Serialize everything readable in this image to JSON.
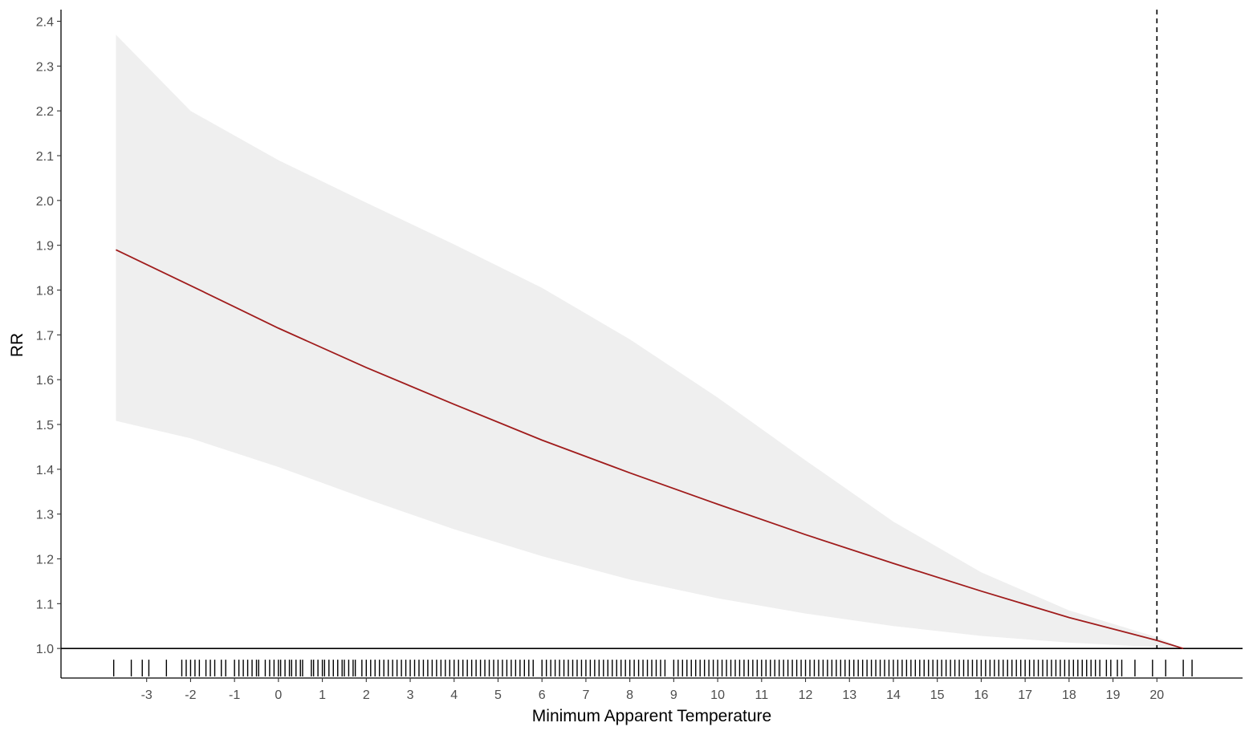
{
  "chart_data": {
    "type": "line",
    "xlabel": "Minimum Apparent Temperature",
    "ylabel": "RR",
    "xlim": [
      -4.95,
      21.95
    ],
    "ylim": [
      0.934,
      2.426
    ],
    "x_ticks": [
      -3,
      -2,
      -1,
      0,
      1,
      2,
      3,
      4,
      5,
      6,
      7,
      8,
      9,
      10,
      11,
      12,
      13,
      14,
      15,
      16,
      17,
      18,
      19,
      20
    ],
    "x_tick_labels": [
      "-3",
      "-2",
      "-1",
      "0",
      "1",
      "2",
      "3",
      "4",
      "5",
      "6",
      "7",
      "8",
      "9",
      "10",
      "11",
      "12",
      "13",
      "14",
      "15",
      "16",
      "17",
      "18",
      "19",
      "20"
    ],
    "y_ticks": [
      1.0,
      1.1,
      1.2,
      1.3,
      1.4,
      1.5,
      1.6,
      1.7,
      1.8,
      1.9,
      2.0,
      2.1,
      2.2,
      2.3,
      2.4
    ],
    "y_tick_labels": [
      "1.0",
      "1.1",
      "1.2",
      "1.3",
      "1.4",
      "1.5",
      "1.6",
      "1.7",
      "1.8",
      "1.9",
      "2.0",
      "2.1",
      "2.2",
      "2.3",
      "2.4"
    ],
    "reference_line_y": 1.0,
    "reference_temperature": 20,
    "series": [
      {
        "x": [
          -3.7,
          -2,
          0,
          2,
          4,
          6,
          8,
          10,
          12,
          14,
          16,
          18,
          20,
          20.6
        ],
        "values": [
          1.89,
          1.81,
          1.715,
          1.627,
          1.545,
          1.465,
          1.392,
          1.322,
          1.254,
          1.19,
          1.128,
          1.069,
          1.018,
          1.0
        ],
        "lower": [
          1.508,
          1.469,
          1.405,
          1.334,
          1.266,
          1.206,
          1.154,
          1.112,
          1.078,
          1.05,
          1.028,
          1.013,
          1.003,
          1.0
        ],
        "upper": [
          2.37,
          2.2,
          2.09,
          1.995,
          1.902,
          1.805,
          1.69,
          1.56,
          1.42,
          1.283,
          1.17,
          1.085,
          1.025,
          1.0
        ],
        "color": "#a01c1c",
        "band_color": "#efefef"
      }
    ],
    "rug_x": [
      -3.75,
      -3.35,
      -3.1,
      -2.95,
      -2.55,
      -2.2,
      -2.1,
      -2.0,
      -1.9,
      -1.8,
      -1.65,
      -1.55,
      -1.45,
      -1.3,
      -1.2,
      -1.0,
      -0.9,
      -0.8,
      -0.7,
      -0.6,
      -0.5,
      -0.45,
      -0.3,
      -0.2,
      -0.1,
      0.0,
      0.05,
      0.15,
      0.25,
      0.3,
      0.4,
      0.5,
      0.55,
      0.75,
      0.8,
      0.9,
      1.0,
      1.05,
      1.15,
      1.25,
      1.35,
      1.45,
      1.5,
      1.6,
      1.7,
      1.75,
      1.9,
      2.0,
      2.1,
      2.2,
      2.3,
      2.4,
      2.5,
      2.6,
      2.7,
      2.8,
      2.9,
      3.0,
      3.1,
      3.2,
      3.3,
      3.4,
      3.5,
      3.6,
      3.7,
      3.8,
      3.9,
      4.0,
      4.1,
      4.2,
      4.3,
      4.4,
      4.5,
      4.6,
      4.7,
      4.8,
      4.9,
      5.0,
      5.1,
      5.2,
      5.3,
      5.4,
      5.5,
      5.6,
      5.7,
      5.8,
      6.0,
      6.1,
      6.2,
      6.3,
      6.4,
      6.5,
      6.6,
      6.7,
      6.8,
      6.9,
      7.0,
      7.1,
      7.2,
      7.3,
      7.4,
      7.5,
      7.6,
      7.7,
      7.8,
      7.9,
      8.0,
      8.1,
      8.2,
      8.3,
      8.4,
      8.5,
      8.6,
      8.7,
      8.8,
      9.0,
      9.1,
      9.2,
      9.3,
      9.4,
      9.5,
      9.6,
      9.7,
      9.8,
      9.9,
      10.0,
      10.1,
      10.2,
      10.3,
      10.4,
      10.5,
      10.6,
      10.7,
      10.8,
      10.9,
      11.0,
      11.1,
      11.2,
      11.3,
      11.4,
      11.5,
      11.6,
      11.7,
      11.8,
      11.9,
      12.0,
      12.1,
      12.2,
      12.3,
      12.4,
      12.5,
      12.6,
      12.7,
      12.8,
      12.9,
      13.0,
      13.1,
      13.2,
      13.3,
      13.4,
      13.5,
      13.6,
      13.7,
      13.8,
      13.9,
      14.0,
      14.1,
      14.2,
      14.3,
      14.4,
      14.5,
      14.6,
      14.7,
      14.8,
      14.9,
      15.0,
      15.1,
      15.2,
      15.3,
      15.4,
      15.5,
      15.6,
      15.7,
      15.8,
      15.9,
      16.0,
      16.1,
      16.2,
      16.3,
      16.4,
      16.5,
      16.6,
      16.7,
      16.8,
      16.9,
      17.0,
      17.1,
      17.2,
      17.3,
      17.4,
      17.5,
      17.6,
      17.7,
      17.8,
      17.9,
      18.0,
      18.1,
      18.2,
      18.3,
      18.4,
      18.5,
      18.6,
      18.7,
      18.85,
      18.95,
      19.1,
      19.2,
      19.5,
      19.9,
      20.2,
      20.6,
      20.8
    ]
  }
}
